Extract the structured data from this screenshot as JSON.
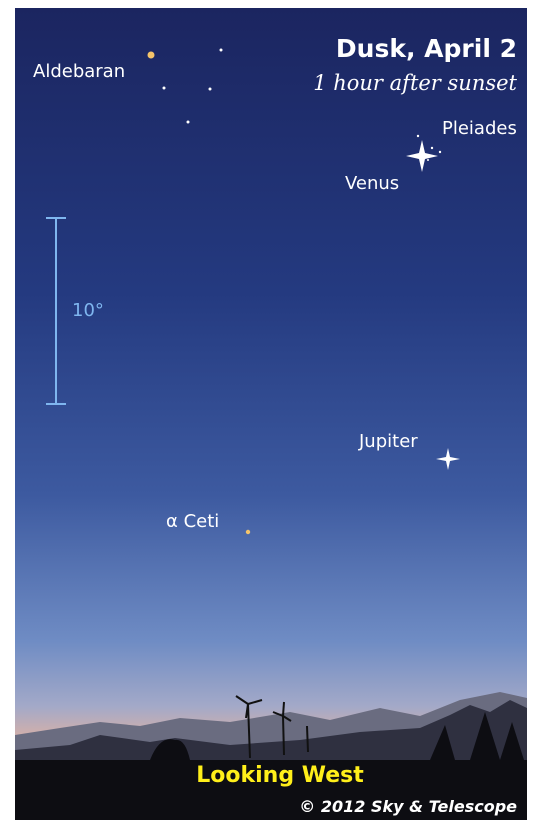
{
  "header": {
    "title": "Dusk, April 2",
    "subtitle": "1 hour after sunset"
  },
  "labels": {
    "aldebaran": "Aldebaran",
    "pleiades": "Pleiades",
    "venus": "Venus",
    "jupiter": "Jupiter",
    "alpha_ceti": "α Ceti"
  },
  "scale": {
    "label": "10°"
  },
  "footer": {
    "direction": "Looking West",
    "credit": "© 2012 Sky & Telescope"
  }
}
